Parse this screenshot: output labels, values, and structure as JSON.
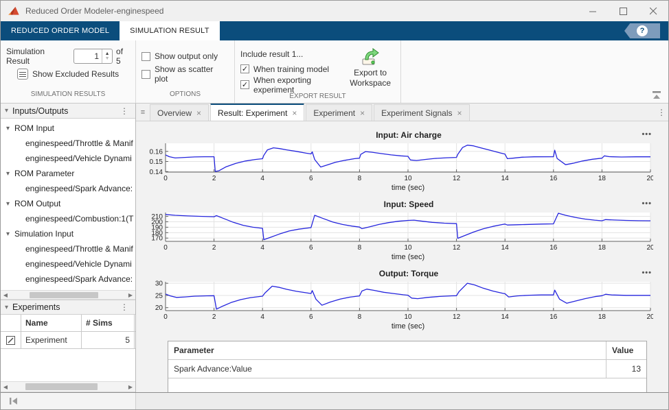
{
  "window": {
    "title": "Reduced Order Modeler-enginespeed"
  },
  "icons": {
    "ellipsis": "•••",
    "menu_dots": "⋮",
    "tab_list": "≡",
    "tree_collapse": "▾",
    "scroll_left": "◀",
    "scroll_right": "▶",
    "spin_up": "▲",
    "spin_down": "▼",
    "check": "✓",
    "close_tab": "×",
    "help": "?"
  },
  "ribbon": {
    "tabs": [
      {
        "label": "REDUCED ORDER MODEL",
        "active": false
      },
      {
        "label": "SIMULATION RESULT",
        "active": true
      }
    ]
  },
  "toolbar": {
    "simulation_results": {
      "section_label": "SIMULATION RESULTS",
      "field_label": "Simulation Result",
      "value": "1",
      "of_label": "of 5",
      "show_excluded_label": "Show Excluded Results"
    },
    "options": {
      "section_label": "OPTIONS",
      "checkboxes": [
        {
          "label": "Show output only",
          "checked": false
        },
        {
          "label": "Show as scatter plot",
          "checked": false
        }
      ]
    },
    "export": {
      "section_label": "EXPORT RESULT",
      "include_label": "Include result 1...",
      "checkboxes": [
        {
          "label": "When training model",
          "checked": true
        },
        {
          "label": "When exporting experiment",
          "checked": true
        }
      ],
      "export_button_line1": "Export to",
      "export_button_line2": "Workspace"
    }
  },
  "sidebar": {
    "inputs_outputs_title": "Inputs/Outputs",
    "tree": [
      {
        "label": "ROM Input",
        "parent": true
      },
      {
        "label": "enginespeed/Throttle & Manif",
        "parent": false
      },
      {
        "label": "enginespeed/Vehicle Dynami",
        "parent": false
      },
      {
        "label": "ROM Parameter",
        "parent": true
      },
      {
        "label": "enginespeed/Spark Advance:",
        "parent": false
      },
      {
        "label": "ROM Output",
        "parent": true
      },
      {
        "label": "enginespeed/Combustion:1(T",
        "parent": false
      },
      {
        "label": "Simulation Input",
        "parent": true
      },
      {
        "label": "enginespeed/Throttle & Manif",
        "parent": false
      },
      {
        "label": "enginespeed/Vehicle Dynami",
        "parent": false
      },
      {
        "label": "enginespeed/Spark Advance:",
        "parent": false
      }
    ],
    "experiments": {
      "title": "Experiments",
      "columns": [
        "Name",
        "# Sims"
      ],
      "rows": [
        {
          "name": "Experiment",
          "sims": "5"
        }
      ]
    }
  },
  "doc_tabs": [
    {
      "label": "Overview",
      "active": false
    },
    {
      "label": "Result: Experiment",
      "active": true
    },
    {
      "label": "Experiment",
      "active": false
    },
    {
      "label": "Experiment Signals",
      "active": false
    }
  ],
  "param_table": {
    "columns": [
      "Parameter",
      "Value"
    ],
    "rows": [
      {
        "parameter": "Spark Advance:Value",
        "value": "13"
      }
    ]
  },
  "chart_data": [
    {
      "type": "line",
      "title": "Input: Air charge",
      "xlabel": "time (sec)",
      "line_color": "#2424dd",
      "xlim": [
        0,
        20
      ],
      "xticks": [
        0,
        2,
        4,
        6,
        8,
        10,
        12,
        14,
        16,
        18,
        20
      ],
      "ylim": [
        0.1395,
        0.168
      ],
      "yticks": [
        {
          "v": 0.14,
          "label": "0.14"
        },
        {
          "v": 0.15,
          "label": "0.15"
        },
        {
          "v": 0.16,
          "label": "0.16"
        }
      ],
      "points": [
        [
          0,
          0.1565
        ],
        [
          0.15,
          0.1548
        ],
        [
          0.4,
          0.1535
        ],
        [
          0.8,
          0.154
        ],
        [
          1.2,
          0.1545
        ],
        [
          1.6,
          0.1547
        ],
        [
          2,
          0.1547
        ],
        [
          2.05,
          0.1402
        ],
        [
          2.2,
          0.1408
        ],
        [
          2.5,
          0.1448
        ],
        [
          2.9,
          0.1482
        ],
        [
          3.3,
          0.1505
        ],
        [
          3.7,
          0.152
        ],
        [
          4,
          0.1527
        ],
        [
          4.05,
          0.156
        ],
        [
          4.2,
          0.1615
        ],
        [
          4.45,
          0.1635
        ],
        [
          4.7,
          0.1628
        ],
        [
          5,
          0.1615
        ],
        [
          5.4,
          0.16
        ],
        [
          5.8,
          0.1582
        ],
        [
          6,
          0.1575
        ],
        [
          6.05,
          0.1595
        ],
        [
          6.15,
          0.152
        ],
        [
          6.4,
          0.1445
        ],
        [
          6.7,
          0.1468
        ],
        [
          7,
          0.1492
        ],
        [
          7.4,
          0.1512
        ],
        [
          7.8,
          0.1528
        ],
        [
          8,
          0.1533
        ],
        [
          8.05,
          0.157
        ],
        [
          8.25,
          0.1598
        ],
        [
          8.5,
          0.1592
        ],
        [
          8.9,
          0.1578
        ],
        [
          9.3,
          0.1565
        ],
        [
          9.7,
          0.1556
        ],
        [
          10,
          0.1551
        ],
        [
          10.1,
          0.1515
        ],
        [
          10.35,
          0.151
        ],
        [
          10.7,
          0.152
        ],
        [
          11.1,
          0.153
        ],
        [
          11.6,
          0.1537
        ],
        [
          12,
          0.154
        ],
        [
          12.05,
          0.157
        ],
        [
          12.25,
          0.1638
        ],
        [
          12.45,
          0.1662
        ],
        [
          12.7,
          0.1655
        ],
        [
          13,
          0.1635
        ],
        [
          13.4,
          0.161
        ],
        [
          13.8,
          0.1585
        ],
        [
          14,
          0.1573
        ],
        [
          14.1,
          0.1528
        ],
        [
          14.3,
          0.1532
        ],
        [
          14.7,
          0.1542
        ],
        [
          15.2,
          0.1546
        ],
        [
          16,
          0.1547
        ],
        [
          16.05,
          0.1612
        ],
        [
          16.15,
          0.153
        ],
        [
          16.5,
          0.1468
        ],
        [
          16.8,
          0.1482
        ],
        [
          17.2,
          0.1505
        ],
        [
          17.6,
          0.1522
        ],
        [
          18,
          0.1533
        ],
        [
          18.1,
          0.1556
        ],
        [
          18.3,
          0.1548
        ],
        [
          18.8,
          0.1544
        ],
        [
          19.4,
          0.1546
        ],
        [
          20,
          0.1546
        ]
      ]
    },
    {
      "type": "line",
      "title": "Input: Speed",
      "xlabel": "time (sec)",
      "line_color": "#2424dd",
      "xlim": [
        0,
        20
      ],
      "xticks": [
        0,
        2,
        4,
        6,
        8,
        10,
        12,
        14,
        16,
        18,
        20
      ],
      "ylim": [
        164,
        217
      ],
      "yticks": [
        {
          "v": 170,
          "label": "170"
        },
        {
          "v": 180,
          "label": "180"
        },
        {
          "v": 190,
          "label": "190"
        },
        {
          "v": 200,
          "label": "200"
        },
        {
          "v": 210,
          "label": "210"
        }
      ],
      "points": [
        [
          0,
          213.5
        ],
        [
          0.4,
          212
        ],
        [
          0.9,
          210.8
        ],
        [
          1.4,
          210
        ],
        [
          2,
          209.3
        ],
        [
          2.1,
          211.3
        ],
        [
          2.4,
          206
        ],
        [
          2.8,
          199
        ],
        [
          3.2,
          193.5
        ],
        [
          3.6,
          190
        ],
        [
          4,
          188
        ],
        [
          4.05,
          167
        ],
        [
          4.3,
          171
        ],
        [
          4.7,
          177.5
        ],
        [
          5.1,
          183
        ],
        [
          5.5,
          186.5
        ],
        [
          6,
          189.3
        ],
        [
          6.15,
          212
        ],
        [
          6.5,
          206
        ],
        [
          6.9,
          199.5
        ],
        [
          7.3,
          195
        ],
        [
          7.7,
          192
        ],
        [
          8,
          190.3
        ],
        [
          8.1,
          187.3
        ],
        [
          8.4,
          190.5
        ],
        [
          8.8,
          195
        ],
        [
          9.2,
          198.5
        ],
        [
          9.6,
          201
        ],
        [
          10,
          202.5
        ],
        [
          10.25,
          203
        ],
        [
          10.6,
          201
        ],
        [
          11,
          199
        ],
        [
          11.5,
          197.5
        ],
        [
          12,
          196.5
        ],
        [
          12.05,
          169.5
        ],
        [
          12.3,
          174
        ],
        [
          12.7,
          181
        ],
        [
          13.1,
          187
        ],
        [
          13.5,
          191.5
        ],
        [
          13.9,
          195
        ],
        [
          14,
          195.8
        ],
        [
          14.1,
          194
        ],
        [
          14.5,
          194.5
        ],
        [
          15,
          195.2
        ],
        [
          15.5,
          195.8
        ],
        [
          16,
          196.2
        ],
        [
          16.2,
          215.8
        ],
        [
          16.5,
          212
        ],
        [
          16.9,
          208
        ],
        [
          17.3,
          205
        ],
        [
          17.7,
          203
        ],
        [
          18,
          201.8
        ],
        [
          18.15,
          204
        ],
        [
          18.5,
          203.2
        ],
        [
          19,
          202.5
        ],
        [
          19.5,
          202
        ],
        [
          20,
          201.8
        ]
      ]
    },
    {
      "type": "line",
      "title": "Output: Torque",
      "xlabel": "time (sec)",
      "line_color": "#2424dd",
      "xlim": [
        0,
        20
      ],
      "xticks": [
        0,
        2,
        4,
        6,
        8,
        10,
        12,
        14,
        16,
        18,
        20
      ],
      "ylim": [
        18.8,
        30.6
      ],
      "yticks": [
        {
          "v": 20,
          "label": "20"
        },
        {
          "v": 25,
          "label": "25"
        },
        {
          "v": 30,
          "label": "30"
        }
      ],
      "points": [
        [
          0,
          25.6
        ],
        [
          0.2,
          24.8
        ],
        [
          0.45,
          24.2
        ],
        [
          0.8,
          24.4
        ],
        [
          1.2,
          24.7
        ],
        [
          1.7,
          24.85
        ],
        [
          2,
          24.9
        ],
        [
          2.1,
          19.4
        ],
        [
          2.35,
          20.6
        ],
        [
          2.7,
          22.1
        ],
        [
          3.1,
          23.3
        ],
        [
          3.5,
          24.1
        ],
        [
          4,
          24.7
        ],
        [
          4.1,
          26
        ],
        [
          4.4,
          28.8
        ],
        [
          4.7,
          28.3
        ],
        [
          5,
          27.5
        ],
        [
          5.4,
          26.7
        ],
        [
          5.8,
          26.1
        ],
        [
          6,
          25.8
        ],
        [
          6.05,
          27
        ],
        [
          6.2,
          23.5
        ],
        [
          6.45,
          21
        ],
        [
          6.8,
          22.3
        ],
        [
          7.2,
          23.5
        ],
        [
          7.6,
          24.3
        ],
        [
          8,
          24.8
        ],
        [
          8.1,
          26.8
        ],
        [
          8.3,
          27.6
        ],
        [
          8.6,
          27.1
        ],
        [
          9,
          26.3
        ],
        [
          9.4,
          25.8
        ],
        [
          9.8,
          25.3
        ],
        [
          10,
          25.1
        ],
        [
          10.15,
          23.9
        ],
        [
          10.4,
          23.7
        ],
        [
          10.8,
          24.2
        ],
        [
          11.3,
          24.6
        ],
        [
          11.8,
          24.85
        ],
        [
          12,
          24.9
        ],
        [
          12.1,
          26.5
        ],
        [
          12.45,
          30
        ],
        [
          12.75,
          29.3
        ],
        [
          13.1,
          28
        ],
        [
          13.5,
          26.8
        ],
        [
          13.9,
          25.9
        ],
        [
          14,
          25.7
        ],
        [
          14.15,
          24.4
        ],
        [
          14.5,
          24.8
        ],
        [
          15,
          25.1
        ],
        [
          15.5,
          25.2
        ],
        [
          16,
          25.2
        ],
        [
          16.05,
          27.2
        ],
        [
          16.25,
          23.5
        ],
        [
          16.55,
          21.8
        ],
        [
          16.9,
          22.7
        ],
        [
          17.3,
          23.7
        ],
        [
          17.7,
          24.5
        ],
        [
          18,
          24.9
        ],
        [
          18.15,
          25.5
        ],
        [
          18.4,
          25.2
        ],
        [
          19,
          25.05
        ],
        [
          19.5,
          25.05
        ],
        [
          20,
          25.05
        ]
      ]
    }
  ]
}
